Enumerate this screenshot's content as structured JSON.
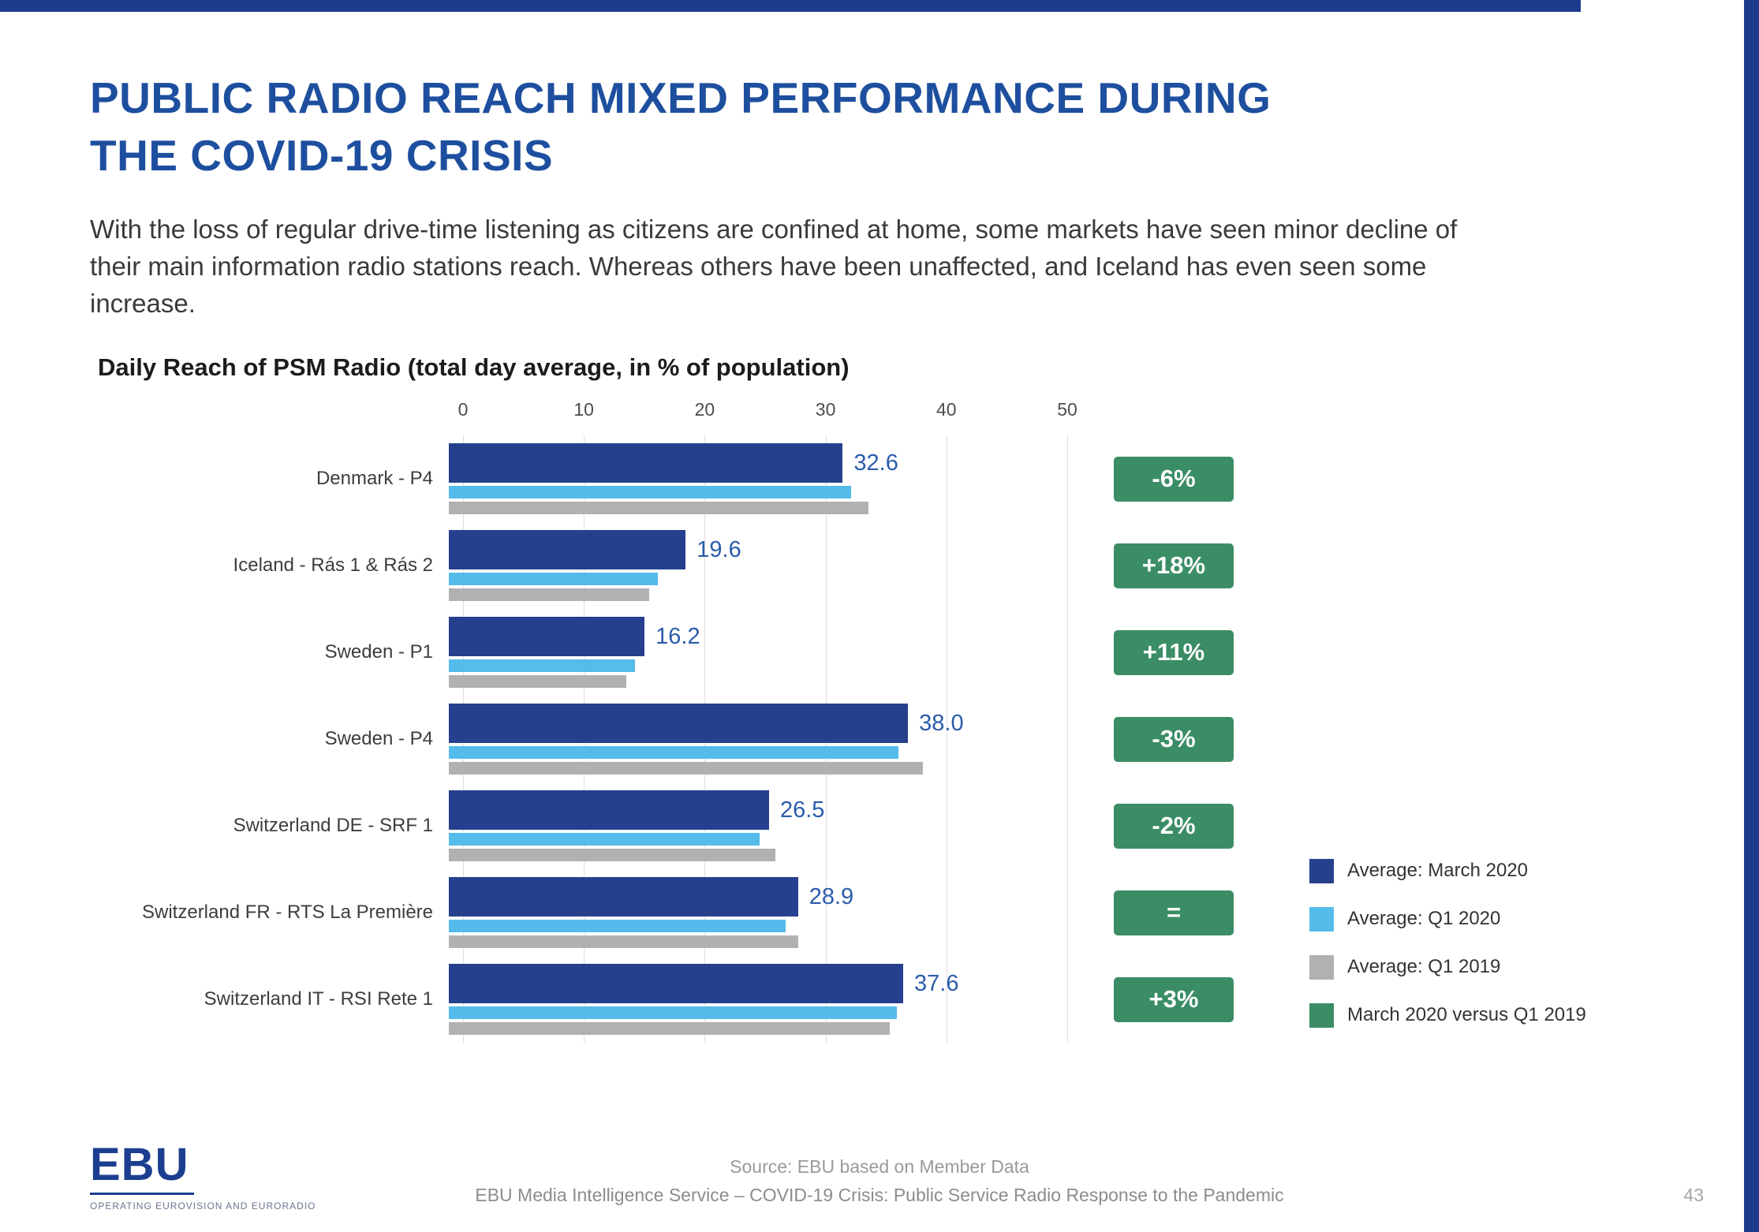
{
  "page": {
    "title_line1": "PUBLIC RADIO REACH MIXED PERFORMANCE DURING",
    "title_line2": "THE COVID-19 CRISIS",
    "subtitle": "With the loss of regular drive-time listening as citizens are confined at home, some markets have seen minor decline of their main information radio stations reach. Whereas others have been unaffected, and Iceland has even seen some increase.",
    "page_number": "43"
  },
  "accent": {
    "navy": "#1d3b8c",
    "title_blue": "#1e4f9f",
    "value_label_blue": "#2b5cab"
  },
  "chart_data": {
    "type": "bar",
    "orientation": "horizontal",
    "title": "Daily Reach of PSM Radio (total day average, in % of population)",
    "categories": [
      "Denmark - P4",
      "Iceland - Rás 1 & Rás 2",
      "Sweden - P1",
      "Sweden - P4",
      "Switzerland DE - SRF 1",
      "Switzerland FR - RTS La Première",
      "Switzerland IT - RSI Rete 1"
    ],
    "series": [
      {
        "name": "Average: March 2020",
        "key": "march-2020",
        "color": "#26408e",
        "values": [
          32.6,
          19.6,
          16.2,
          38.0,
          26.5,
          28.9,
          37.6
        ]
      },
      {
        "name": "Average: Q1 2020",
        "key": "q1-2020",
        "color": "#55bbea",
        "values": [
          33.3,
          17.3,
          15.4,
          37.2,
          25.7,
          27.9,
          37.1
        ]
      },
      {
        "name": "Average: Q1 2019",
        "key": "q1-2019",
        "color": "#b1b1b1",
        "values": [
          34.7,
          16.6,
          14.7,
          39.2,
          27.0,
          28.9,
          36.5
        ]
      }
    ],
    "value_labels": [
      "32.6",
      "19.6",
      "16.2",
      "38.0",
      "26.5",
      "28.9",
      "37.6"
    ],
    "change_labels": [
      "-6%",
      "+18%",
      "+11%",
      "-3%",
      "-2%",
      "=",
      "+3%"
    ],
    "change_color": "#3b8d66",
    "x_ticks": [
      0,
      10,
      20,
      30,
      40,
      50
    ],
    "xlim": [
      0,
      50
    ],
    "grid": true,
    "legend_position": "right",
    "legend": [
      {
        "label": "Average: March 2020",
        "color": "#26408e"
      },
      {
        "label": "Average: Q1 2020",
        "color": "#55bbea"
      },
      {
        "label": "Average: Q1 2019",
        "color": "#b1b1b1"
      },
      {
        "label": "March 2020 versus Q1 2019",
        "color": "#3b8d66"
      }
    ]
  },
  "footer": {
    "logo_text": "EBU",
    "logo_subtext": "OPERATING EUROVISION AND EURORADIO",
    "source_line1": "Source: EBU based on Member Data",
    "source_line2": "EBU Media Intelligence Service – COVID-19 Crisis: Public Service Radio Response to the Pandemic"
  }
}
